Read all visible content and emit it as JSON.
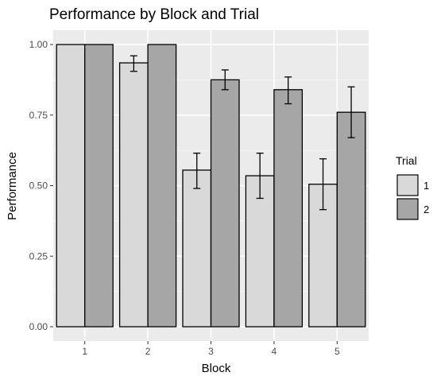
{
  "chart_data": {
    "type": "bar",
    "title": "Performance by Block and Trial",
    "xlabel": "Block",
    "ylabel": "Performance",
    "categories": [
      "1",
      "2",
      "3",
      "4",
      "5"
    ],
    "ylim": [
      0,
      1.05
    ],
    "yticks": [
      "0.00",
      "0.25",
      "0.50",
      "0.75",
      "1.00"
    ],
    "yticks_values": [
      0,
      0.25,
      0.5,
      0.75,
      1.0
    ],
    "grid": true,
    "legend": {
      "title": "Trial",
      "position": "right"
    },
    "series": [
      {
        "name": "1",
        "color": "#d9d9d9",
        "values": [
          1.0,
          0.935,
          0.555,
          0.535,
          0.505
        ],
        "error_low": [
          1.0,
          0.905,
          0.49,
          0.455,
          0.415
        ],
        "error_high": [
          1.0,
          0.96,
          0.615,
          0.615,
          0.595
        ]
      },
      {
        "name": "2",
        "color": "#a6a6a6",
        "values": [
          1.0,
          1.0,
          0.875,
          0.84,
          0.76
        ],
        "error_low": [
          1.0,
          1.0,
          0.84,
          0.79,
          0.67
        ],
        "error_high": [
          1.0,
          1.0,
          0.91,
          0.885,
          0.85
        ]
      }
    ]
  }
}
